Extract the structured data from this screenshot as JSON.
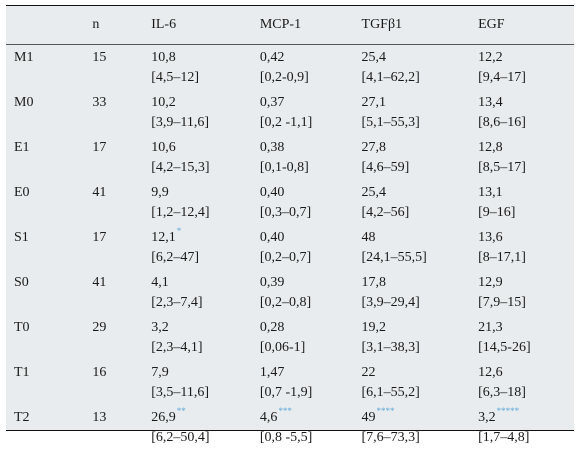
{
  "headers": [
    "",
    "n",
    "IL-6",
    "MCP-1",
    "TGFβ1",
    "EGF"
  ],
  "rows": [
    {
      "label": "M1",
      "n": "15",
      "il6": [
        "10,8",
        "[4,5–12]"
      ],
      "mcp1": [
        "0,42",
        "[0,2-0,9]"
      ],
      "tgf": [
        "25,4",
        "[4,1–62,2]"
      ],
      "egf": [
        "12,2",
        "[9,4–17]"
      ]
    },
    {
      "label": "M0",
      "n": "33",
      "il6": [
        "10,2",
        "[3,9–11,6]"
      ],
      "mcp1": [
        "0,37",
        "[0,2 -1,1]"
      ],
      "tgf": [
        "27,1",
        "[5,1–55,3]"
      ],
      "egf": [
        "13,4",
        "[8,6–16]"
      ]
    },
    {
      "label": "E1",
      "n": "17",
      "il6": [
        "10,6",
        "[4,2–15,3]"
      ],
      "mcp1": [
        "0,38",
        "[0,1-0,8]"
      ],
      "tgf": [
        "27,8",
        "[4,6–59]"
      ],
      "egf": [
        "12,8",
        "[8,5–17]"
      ]
    },
    {
      "label": "E0",
      "n": "41",
      "il6": [
        "9,9",
        "[1,2–12,4]"
      ],
      "mcp1": [
        "0,40",
        "[0,3–0,7]"
      ],
      "tgf": [
        "25,4",
        "[4,2–56]"
      ],
      "egf": [
        "13,1",
        "[9–16]"
      ]
    },
    {
      "label": "S1",
      "n": "17",
      "il6": [
        "12,1",
        "[6,2–47]"
      ],
      "mcp1": [
        "0,40",
        "[0,2–0,7]"
      ],
      "tgf": [
        "48",
        "[24,1–55,5]"
      ],
      "egf": [
        "13,6",
        "[8–17,1]"
      ]
    },
    {
      "label": "S0",
      "n": "41",
      "il6": [
        "4,1",
        "[2,3–7,4]"
      ],
      "mcp1": [
        "0,39",
        "[0,2–0,8]"
      ],
      "tgf": [
        "17,8",
        "[3,9–29,4]"
      ],
      "egf": [
        "12,9",
        "[7,9–15]"
      ]
    },
    {
      "label": "T0",
      "n": "29",
      "il6": [
        "3,2",
        "[2,3–4,1]"
      ],
      "mcp1": [
        "0,28",
        "[0,06-1]"
      ],
      "tgf": [
        "19,2",
        "[3,1–38,3]"
      ],
      "egf": [
        "21,3",
        "[14,5-26]"
      ]
    },
    {
      "label": "T1",
      "n": "16",
      "il6": [
        "7,9",
        "[3,5–11,6]"
      ],
      "mcp1": [
        "1,47",
        "[0,7 -1,9]"
      ],
      "tgf": [
        "22",
        "[6,1–55,2]"
      ],
      "egf": [
        "12,6",
        "[6,3–18]"
      ]
    },
    {
      "label": "T2",
      "n": "13",
      "il6": [
        "26,9",
        "[6,2–50,4]"
      ],
      "mcp1": [
        "4,6",
        "[0,8 -5,5]"
      ],
      "tgf": [
        "49",
        "[7,6–73,3]"
      ],
      "egf": [
        "3,2",
        "[1,7–4,8]"
      ]
    }
  ],
  "footnote_marks": {
    "s1_il6": "*",
    "t2_il6": "**",
    "t2_mcp1": "***",
    "t2_tgf": "****",
    "t2_egf": "*****"
  },
  "colors": {
    "background": "#e9ecee",
    "footnote_mark": "#5aa7d8"
  }
}
